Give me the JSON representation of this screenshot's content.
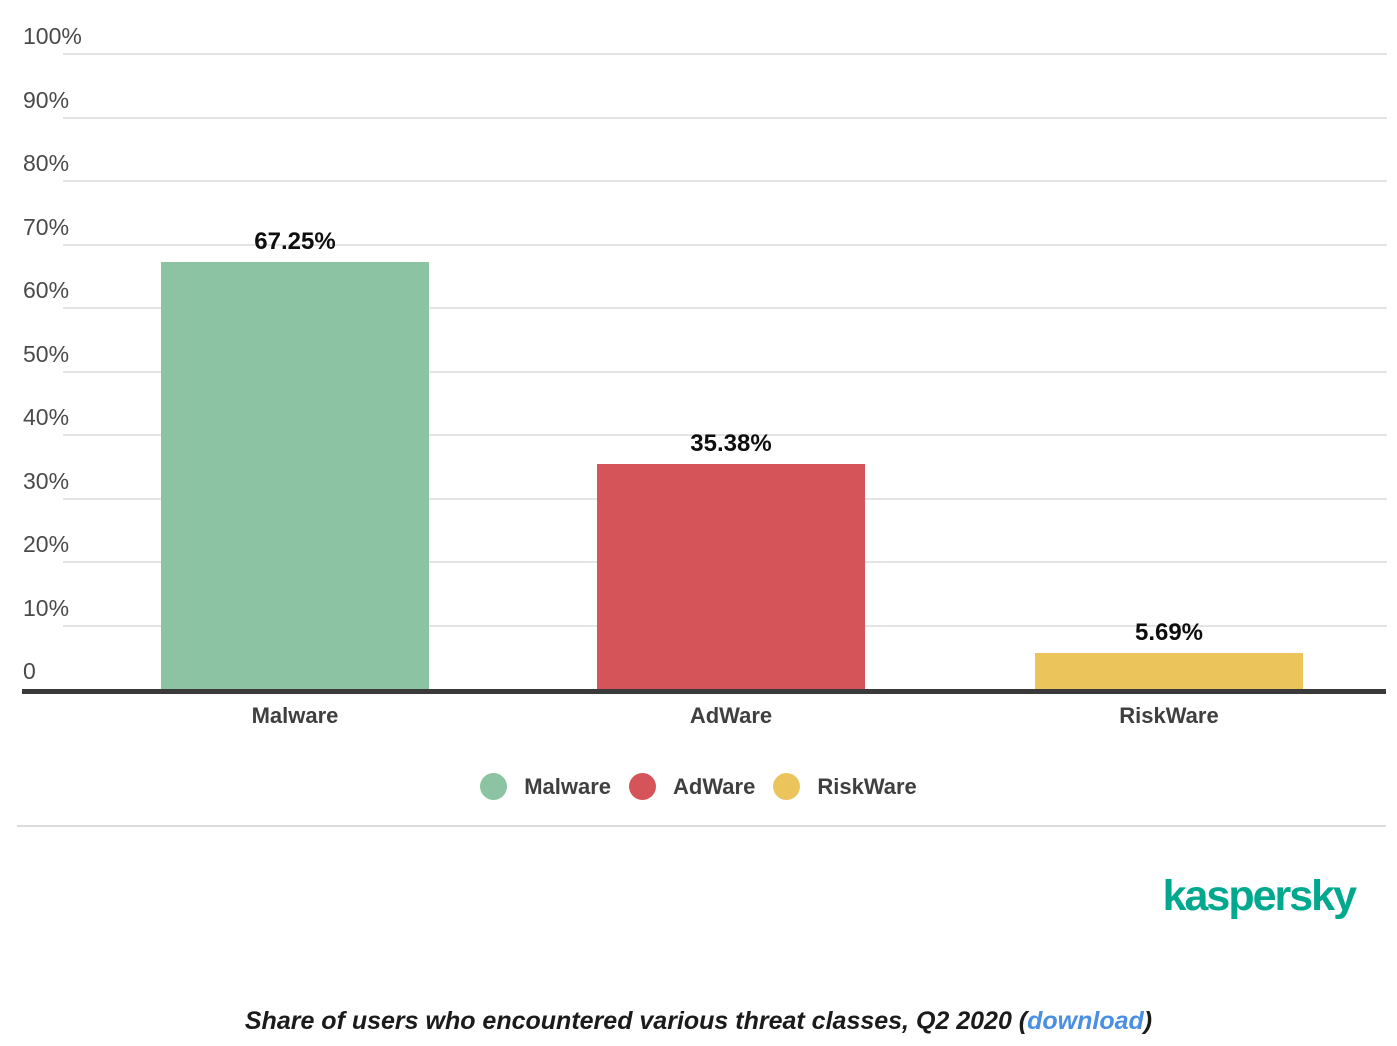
{
  "chart_data": {
    "type": "bar",
    "categories": [
      "Malware",
      "AdWare",
      "RiskWare"
    ],
    "values": [
      67.25,
      35.38,
      5.69
    ],
    "value_labels": [
      "67.25%",
      "35.38%",
      "5.69%"
    ],
    "bar_colors": [
      "#8cc3a2",
      "#d4545a",
      "#ebc55b"
    ],
    "title": "",
    "xlabel": "",
    "ylabel": "",
    "ylim": [
      0,
      100
    ],
    "y_ticks": [
      "100%",
      "90%",
      "80%",
      "70%",
      "60%",
      "50%",
      "40%",
      "30%",
      "20%",
      "10%",
      "0"
    ],
    "grid": true,
    "legend_position": "bottom",
    "legend": [
      {
        "label": "Malware",
        "color": "#8cc3a2"
      },
      {
        "label": "AdWare",
        "color": "#d4545a"
      },
      {
        "label": "RiskWare",
        "color": "#ebc55b"
      }
    ],
    "colors": {
      "gridline": "#e4e4e4",
      "axis_line": "#3a3a3a",
      "tick_text": "#4a4a4a",
      "category_text": "#3f3f3f",
      "value_text": "#0e0e0e"
    }
  },
  "branding": {
    "logo_text": "kaspersky",
    "logo_color": "#00a88e"
  },
  "caption": {
    "text_before": "Share of users who encountered various threat classes, Q2 2020 (",
    "link_label": "download",
    "text_after": ")",
    "link_color": "#4a8fe2"
  }
}
